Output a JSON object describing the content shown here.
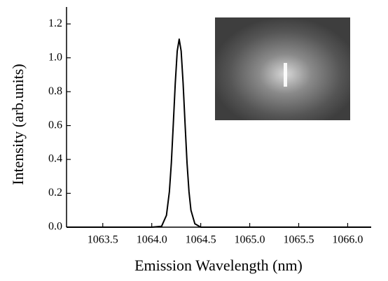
{
  "chart_data": {
    "type": "line",
    "x_label": "Emission Wavelength (nm)",
    "y_label": "Intensity (arb.units)",
    "x": [
      1063.13,
      1064.0,
      1064.1,
      1064.15,
      1064.18,
      1064.2,
      1064.22,
      1064.24,
      1064.26,
      1064.28,
      1064.3,
      1064.32,
      1064.34,
      1064.36,
      1064.38,
      1064.4,
      1064.44,
      1064.5,
      1065.0,
      1066.24
    ],
    "series": [
      {
        "color": "#000000",
        "values": [
          0,
          0,
          0.005,
          0.07,
          0.21,
          0.38,
          0.61,
          0.85,
          1.04,
          1.11,
          1.04,
          0.85,
          0.61,
          0.38,
          0.21,
          0.1,
          0.02,
          0,
          0,
          0
        ]
      }
    ],
    "xlim": [
      1063.13,
      1066.24
    ],
    "xticks": [
      1063.5,
      {
        "value": 1064.0,
        "label": "1064.0"
      },
      1064.5,
      {
        "value": 1065.0,
        "label": "1065.0"
      },
      1065.5,
      {
        "value": 1066.0,
        "label": "1066.0"
      }
    ],
    "ylim": [
      0,
      1.3
    ],
    "yticks": [
      {
        "value": 0,
        "label": "0.0"
      },
      0.2,
      0.4,
      0.6,
      0.8,
      {
        "value": 1.0,
        "label": "1.0"
      },
      1.2
    ],
    "grid": false
  }
}
